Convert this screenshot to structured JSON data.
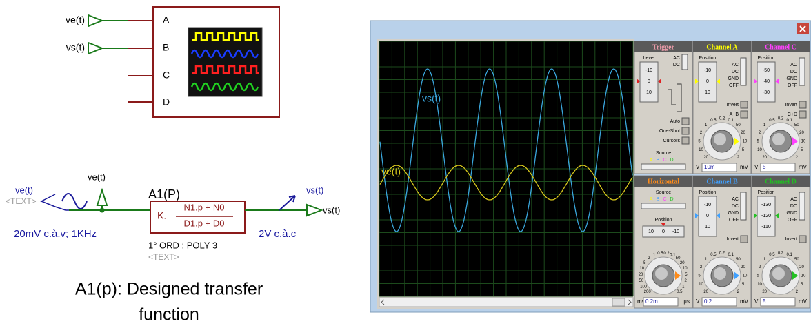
{
  "schematic": {
    "scope_inputs": [
      "ve(t)",
      "vs(t)"
    ],
    "pins": [
      "A",
      "B",
      "C",
      "D"
    ],
    "input_terminal": "ve(t)",
    "source_label": "ve(t)",
    "source_text": "<TEXT>",
    "source_value": "20mV c.à.v; 1KHz",
    "block_name": "A1(P)",
    "gain": "K.",
    "numerator": "N1.p + N0",
    "denominator": "D1.p + D0",
    "order": "1° ORD : POLY 3",
    "block_text": "<TEXT>",
    "probe_label": "vs(t)",
    "output_terminal": "vs(t)",
    "output_value": "2V c.à.c",
    "caption": [
      "A1(p): Designed transfer",
      "function"
    ]
  },
  "oscilloscope": {
    "traces": [
      {
        "name": "vs(t)",
        "color": "#3aa6dc"
      },
      {
        "name": "ve(t)",
        "color": "#d8c81c"
      }
    ],
    "trigger": {
      "title": "Trigger",
      "color": "#e89aa8",
      "level": "Level",
      "scale": [
        "-10",
        "0",
        "10"
      ],
      "coupling": [
        "AC",
        "DC"
      ],
      "buttons": [
        "Auto",
        "One-Shot",
        "Cursors"
      ],
      "source": "Source",
      "channels": [
        "A",
        "B",
        "C",
        "D"
      ]
    },
    "horizontal": {
      "title": "Horizontal",
      "color": "#ff8c1a",
      "source": "Source",
      "channels": [
        "A",
        "B",
        "C",
        "D"
      ],
      "position": "Position",
      "scale": [
        "10",
        "0",
        "-10"
      ],
      "knob": [
        "200",
        "100",
        "50",
        "20",
        "10",
        "5",
        "2",
        "1",
        "0.5",
        "0.2",
        "0.1",
        "50",
        "20",
        "10",
        "5",
        "2",
        "1",
        "0.5"
      ],
      "units": [
        "ms",
        "0.2m",
        "µs"
      ]
    },
    "channels": [
      {
        "title": "Channel A",
        "color": "#ffff00",
        "position": "Position",
        "scale": [
          "-10",
          "0",
          "10"
        ],
        "coupling": [
          "AC",
          "DC",
          "GND",
          "OFF"
        ],
        "buttons": [
          "Invert",
          "A+B"
        ],
        "knob": [
          "20",
          "10",
          "5",
          "2",
          "1",
          "0.5",
          "0.2",
          "0.1",
          "50",
          "20",
          "10",
          "5",
          "2"
        ],
        "units": [
          "V",
          "10m",
          "mV"
        ]
      },
      {
        "title": "Channel B",
        "color": "#3fa0ff",
        "position": "Position",
        "scale": [
          "-10",
          "0",
          "10"
        ],
        "coupling": [
          "AC",
          "DC",
          "GND",
          "OFF"
        ],
        "buttons": [
          "Invert"
        ],
        "knob": [
          "20",
          "10",
          "5",
          "2",
          "1",
          "0.5",
          "0.2",
          "0.1",
          "50",
          "20",
          "10",
          "5",
          "2"
        ],
        "units": [
          "V",
          "0.2",
          "mV"
        ]
      },
      {
        "title": "Channel C",
        "color": "#ff40ff",
        "position": "Position",
        "scale": [
          "-50",
          "-40",
          "-30"
        ],
        "coupling": [
          "AC",
          "DC",
          "GND",
          "OFF"
        ],
        "buttons": [
          "Invert",
          "C+D"
        ],
        "knob": [
          "20",
          "10",
          "5",
          "2",
          "1",
          "0.5",
          "0.2",
          "0.1",
          "50",
          "20",
          "10",
          "5",
          "2"
        ],
        "units": [
          "V",
          "5",
          "mV"
        ]
      },
      {
        "title": "Channel D",
        "color": "#22c022",
        "position": "Position",
        "scale": [
          "-130",
          "-120",
          "-110"
        ],
        "coupling": [
          "AC",
          "DC",
          "GND",
          "OFF"
        ],
        "buttons": [
          "Invert"
        ],
        "knob": [
          "20",
          "10",
          "5",
          "2",
          "1",
          "0.5",
          "0.2",
          "0.1",
          "50",
          "20",
          "10",
          "5",
          "2"
        ],
        "units": [
          "V",
          "5",
          "mV"
        ]
      }
    ]
  }
}
